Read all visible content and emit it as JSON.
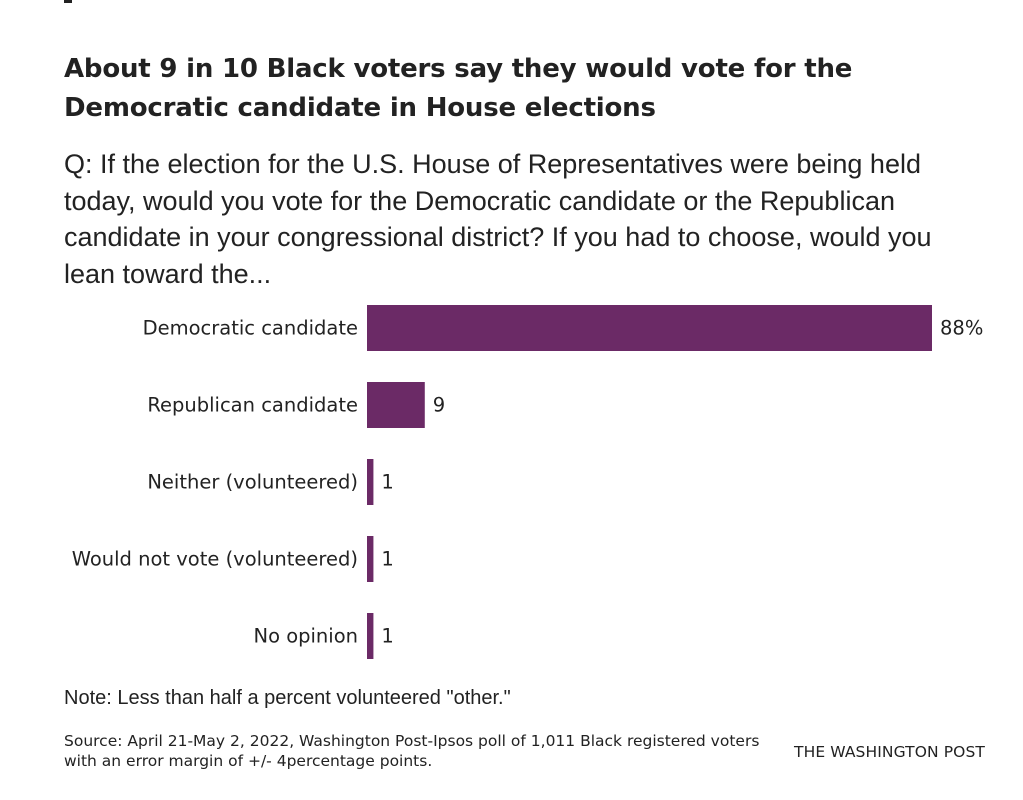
{
  "title": "About 9 in 10 Black voters say they would vote for the Democratic candidate in House elections",
  "subtitle": "Q: If the election for the U.S. House of Representatives were being held today, would you vote for the Democratic candidate or the Republican candidate in your congressional district? If you had to choose, would you lean toward the...",
  "note": "Note: Less than half a percent volunteered \"other.\"",
  "source": "Source: April 21-May 2, 2022, Washington Post-Ipsos poll of 1,011 Black registered voters with an error margin of +/- 4percentage points.",
  "credit": "THE WASHINGTON POST",
  "colors": {
    "bar": "#6b2a66"
  },
  "chart_data": {
    "type": "bar",
    "orientation": "horizontal",
    "categories": [
      "Democratic candidate",
      "Republican candidate",
      "Neither (volunteered)",
      "Would not vote (volunteered)",
      "No opinion"
    ],
    "values": [
      88,
      9,
      1,
      1,
      1
    ],
    "value_labels": [
      "88%",
      "9",
      "1",
      "1",
      "1"
    ],
    "title": "About 9 in 10 Black voters say they would vote for the Democratic candidate in House elections",
    "xlim": [
      0,
      88
    ],
    "grid": false
  }
}
